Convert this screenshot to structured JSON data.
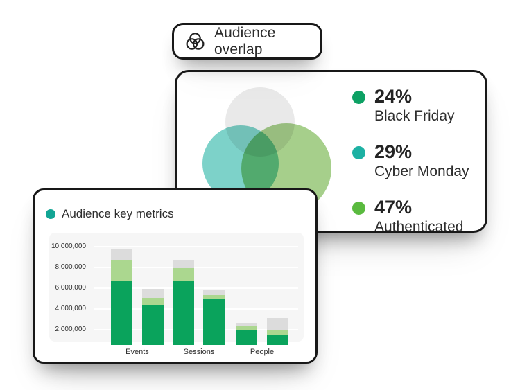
{
  "badge": {
    "label": "Audience overlap",
    "icon": "venn-overlap-icon"
  },
  "overlap_card": {
    "legend": [
      {
        "value": "24%",
        "label": "Black Friday",
        "bullet_color": "#0da164"
      },
      {
        "value": "29%",
        "label": "Cyber Monday",
        "bullet_color": "#1db1a3"
      },
      {
        "value": "47%",
        "label": "Authenticated",
        "bullet_color": "#5aba3f"
      }
    ],
    "venn": {
      "circles": [
        {
          "name": "top-circle",
          "color": "#e9e9e9"
        },
        {
          "name": "bottom-left-circle",
          "color": "#7dd2c9"
        },
        {
          "name": "bottom-right-circle",
          "color": "#a6cf8b"
        }
      ]
    }
  },
  "metrics_card": {
    "title": "Audience key metrics",
    "bullet_color": "#12a594"
  },
  "chart_data": {
    "type": "bar",
    "stacked": true,
    "title": "Audience key metrics",
    "categories": [
      "Events",
      "Sessions",
      "People"
    ],
    "bars_per_category": 2,
    "series": [
      {
        "name": "dark-green",
        "color": "#0aa35c",
        "values_millions": [
          6.7,
          4.3,
          6.6,
          4.9,
          1.9,
          1.5
        ]
      },
      {
        "name": "light-green",
        "color": "#abd78f",
        "values_millions": [
          1.9,
          0.7,
          1.3,
          0.4,
          0.4,
          0.4
        ]
      },
      {
        "name": "gray",
        "color": "#dcdcdc",
        "values_millions": [
          1.1,
          0.9,
          0.7,
          0.5,
          0.3,
          1.2
        ]
      }
    ],
    "y_tick_labels": [
      "10,000,000",
      "8,000,000",
      "6,000,000",
      "4,000,000",
      "2,000,000"
    ],
    "xlabel": "",
    "ylabel": "",
    "ylim_millions": [
      0,
      10.8
    ],
    "grid": true,
    "legend_position": "none"
  }
}
